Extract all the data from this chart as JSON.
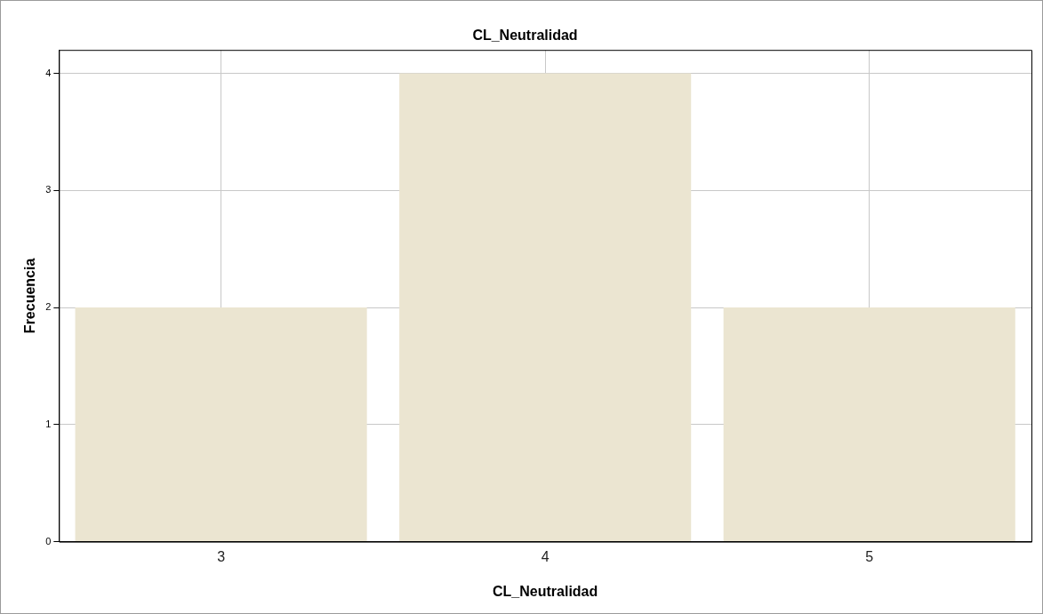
{
  "chart_data": {
    "type": "bar",
    "title": "CL_Neutralidad",
    "xlabel": "CL_Neutralidad",
    "ylabel": "Frecuencia",
    "categories": [
      "3",
      "4",
      "5"
    ],
    "values": [
      2,
      4,
      2
    ],
    "color": "#ebe5d1",
    "ylim": [
      0,
      4.2
    ],
    "yticks": [
      0,
      1,
      2,
      3,
      4
    ],
    "grid": true
  }
}
